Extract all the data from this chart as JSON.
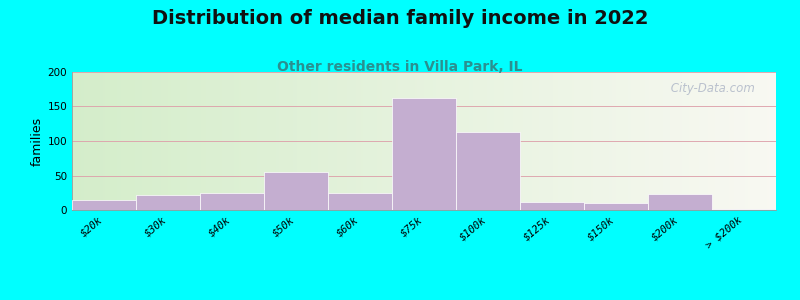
{
  "title": "Distribution of median family income in 2022",
  "subtitle": "Other residents in Villa Park, IL",
  "ylabel": "families",
  "categories": [
    "$20k",
    "$30k",
    "$40k",
    "$50k",
    "$60k",
    "$75k",
    "$100k",
    "$125k",
    "$150k",
    "$200k",
    "> $200k"
  ],
  "values": [
    15,
    22,
    24,
    55,
    25,
    163,
    113,
    12,
    10,
    23,
    2
  ],
  "bar_color": "#c4aed0",
  "bar_edge_color": "#c4aed0",
  "background_outer": "#00ffff",
  "background_inner_left": "#d4edca",
  "background_inner_right": "#f8f8f2",
  "grid_color": "#dda0aa",
  "title_fontsize": 14,
  "subtitle_fontsize": 10,
  "ylabel_fontsize": 9,
  "tick_fontsize": 7.5,
  "ylim": [
    0,
    200
  ],
  "yticks": [
    0,
    50,
    100,
    150,
    200
  ],
  "watermark": " City-Data.com"
}
